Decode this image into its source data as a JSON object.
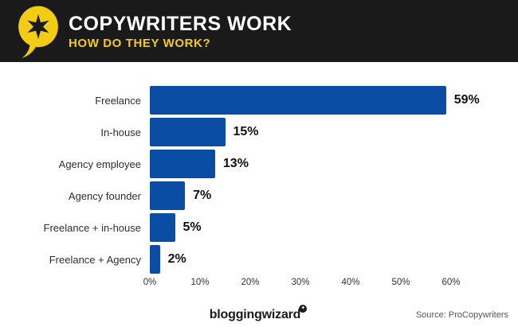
{
  "header": {
    "title": "COPYWRITERS WORK",
    "subtitle": "HOW DO THEY WORK?",
    "bg_color": "#1a1a1a",
    "title_color": "#ffffff",
    "accent_color": "#f2cd13",
    "logo_icon": "speech-bubble-star-icon"
  },
  "chart_data": {
    "type": "bar",
    "orientation": "horizontal",
    "title": "",
    "xlabel": "",
    "ylabel": "",
    "categories": [
      "Freelance",
      "In-house",
      "Agency employee",
      "Agency founder",
      "Freelance + in-house",
      "Freelance + Agency"
    ],
    "values": [
      59,
      15,
      13,
      7,
      5,
      2
    ],
    "value_labels": [
      "59%",
      "15%",
      "13%",
      "7%",
      "5%",
      "2%"
    ],
    "x_ticks": [
      "0%",
      "10%",
      "20%",
      "30%",
      "40%",
      "50%",
      "60%"
    ],
    "xlim": [
      0,
      60
    ],
    "bar_color": "#0b4da5",
    "grid": false,
    "legend": null
  },
  "footer": {
    "brand": "bloggingwizard",
    "brand_mark_icon": "star-badge-icon",
    "brand_mark_glyph": "✦",
    "source": "Source: ProCopywriters"
  }
}
